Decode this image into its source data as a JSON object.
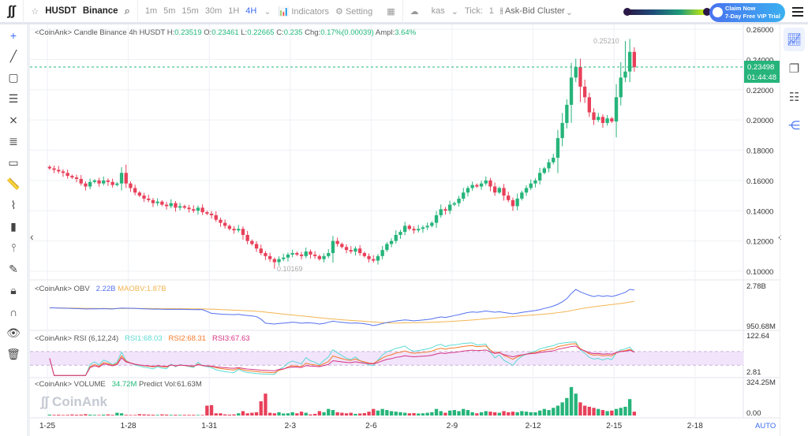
{
  "toolbar": {
    "symbol": "HUSDT",
    "exchange": "Binance",
    "intervals": [
      "1m",
      "5m",
      "15m",
      "30m",
      "1H",
      "4H"
    ],
    "active_interval": "4H",
    "indicators": "Indicators",
    "setting": "Setting",
    "cluster_symbol": "kas",
    "tick_label": "Tick:",
    "tick_value": "1",
    "cluster": "Ask-Bid Cluster",
    "claim_line1": "Claim Now",
    "claim_line2": "7-Day Free VIP Trial"
  },
  "legend": {
    "main_prefix": "<CoinAnk> Candle  Binance 4h HUSDT",
    "h_label": "H:",
    "h": "0.23519",
    "o_label": "O:",
    "o": "0.23461",
    "l_label": "L:",
    "l": "0.22665",
    "c_label": "C:",
    "c": "0.235",
    "chg_label": "Chg:",
    "chg": "0.17%(0.00039)",
    "ampl_label": "Ampl:",
    "ampl": "3.64%",
    "obv": "<CoinAnk> OBV",
    "obv_val": "2.22B",
    "maobv": "MAOBV:1.87B",
    "rsi": "<CoinAnk> RSI  (6,12,24)",
    "rsi1": "RSI1:68.03",
    "rsi2": "RSI2:68.31",
    "rsi3": "RSI3:67.63",
    "vol": "<CoinAnk> VOLUME",
    "vol_val": "34.72M",
    "predict": "Predict Vol:61.63M"
  },
  "watermark": "CoinAnk",
  "price_axis": {
    "ticks": [
      "0.26000",
      "0.24000",
      "0.22000",
      "0.20000",
      "0.18000",
      "0.16000",
      "0.14000",
      "0.12000",
      "0.10000"
    ],
    "last_price": "0.23498",
    "countdown": "01:44:48",
    "high_mark": "0.25210",
    "low_mark": "0.10169"
  },
  "obv_axis": [
    "2.78B",
    "950.68M"
  ],
  "rsi_axis": [
    "122.64",
    "2.81"
  ],
  "vol_axis": [
    "324.25M",
    "0.00"
  ],
  "date_axis": [
    "1-25",
    "1-28",
    "1-31",
    "2-3",
    "2-6",
    "2-9",
    "2-12",
    "2-15",
    "2-18"
  ],
  "auto": "AUTO",
  "colors": {
    "up": "#26b47a",
    "down": "#e8405a",
    "accent": "#3b6cf5",
    "obv": "#5470f0",
    "maobv": "#f2b552",
    "rsi1": "#5ddad3",
    "rsi2": "#f57a2a",
    "rsi3": "#d63384"
  },
  "chart_data": {
    "type": "candlestick",
    "interval": "4h",
    "start": "1-25",
    "ylim": [
      0.1,
      0.26
    ],
    "close": [
      0.168,
      0.167,
      0.166,
      0.165,
      0.163,
      0.162,
      0.161,
      0.158,
      0.156,
      0.159,
      0.16,
      0.158,
      0.16,
      0.159,
      0.157,
      0.158,
      0.165,
      0.158,
      0.155,
      0.152,
      0.15,
      0.148,
      0.147,
      0.145,
      0.146,
      0.144,
      0.143,
      0.145,
      0.142,
      0.143,
      0.142,
      0.141,
      0.14,
      0.142,
      0.139,
      0.138,
      0.137,
      0.134,
      0.132,
      0.13,
      0.128,
      0.127,
      0.128,
      0.124,
      0.12,
      0.118,
      0.115,
      0.112,
      0.11,
      0.108,
      0.106,
      0.108,
      0.109,
      0.111,
      0.112,
      0.111,
      0.11,
      0.113,
      0.111,
      0.11,
      0.108,
      0.11,
      0.112,
      0.12,
      0.118,
      0.116,
      0.114,
      0.113,
      0.115,
      0.112,
      0.11,
      0.108,
      0.107,
      0.11,
      0.114,
      0.118,
      0.12,
      0.124,
      0.126,
      0.13,
      0.128,
      0.127,
      0.128,
      0.129,
      0.13,
      0.132,
      0.137,
      0.141,
      0.14,
      0.144,
      0.145,
      0.148,
      0.152,
      0.155,
      0.157,
      0.156,
      0.158,
      0.16,
      0.156,
      0.152,
      0.155,
      0.15,
      0.147,
      0.143,
      0.148,
      0.152,
      0.155,
      0.158,
      0.16,
      0.165,
      0.168,
      0.172,
      0.175,
      0.188,
      0.198,
      0.21,
      0.228,
      0.235,
      0.222,
      0.215,
      0.205,
      0.2,
      0.202,
      0.198,
      0.201,
      0.199,
      0.215,
      0.228,
      0.232,
      0.245,
      0.2349
    ],
    "volume_m": [
      8,
      6,
      7,
      5,
      6,
      9,
      7,
      8,
      12,
      8,
      6,
      5,
      8,
      10,
      6,
      25,
      20,
      6,
      5,
      5,
      12,
      10,
      8,
      7,
      6,
      10,
      8,
      6,
      7,
      6,
      6,
      6,
      6,
      5,
      5,
      90,
      95,
      20,
      20,
      10,
      8,
      10,
      20,
      40,
      20,
      25,
      30,
      130,
      200,
      25,
      20,
      30,
      18,
      20,
      30,
      20,
      35,
      25,
      10,
      15,
      40,
      30,
      60,
      50,
      30,
      25,
      20,
      25,
      15,
      18,
      22,
      35,
      60,
      45,
      60,
      50,
      40,
      35,
      30,
      25,
      20,
      22,
      18,
      20,
      25,
      30,
      60,
      40,
      25,
      45,
      50,
      40,
      60,
      50,
      30,
      20,
      30,
      40,
      35,
      30,
      25,
      40,
      30,
      35,
      30,
      40,
      35,
      30,
      30,
      45,
      60,
      50,
      70,
      90,
      120,
      160,
      260,
      200,
      120,
      90,
      80,
      70,
      60,
      50,
      40,
      45,
      60,
      70,
      80,
      150,
      34.72
    ]
  }
}
